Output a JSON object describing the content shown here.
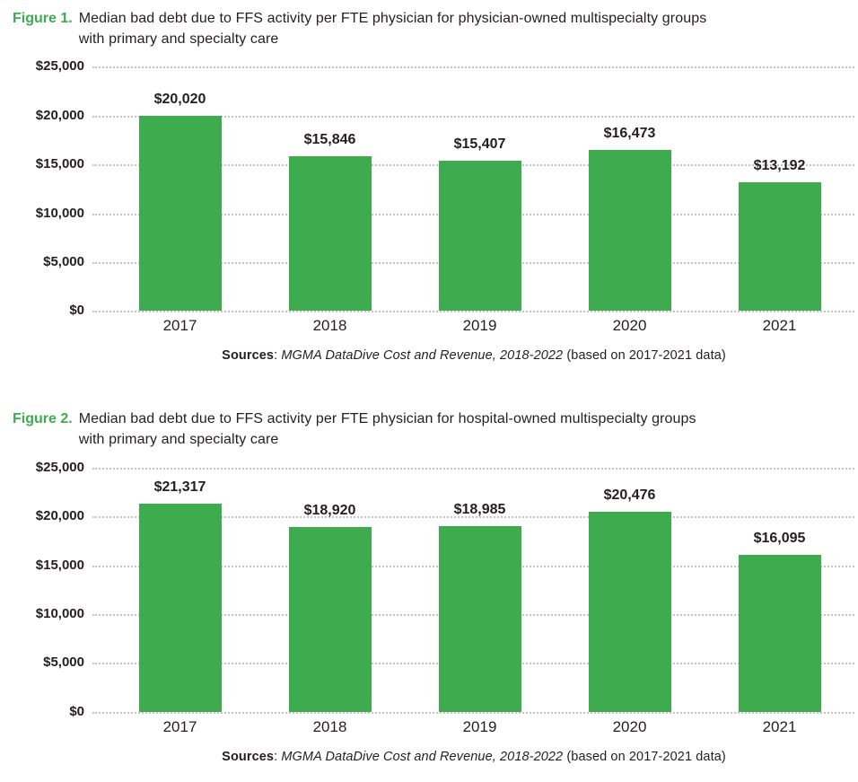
{
  "colors": {
    "bar_green": "#3eac4e",
    "figure_label_green": "#3eac4e",
    "text_dark": "#231f20",
    "gridline_gray": "#c3c3c3"
  },
  "chart_data": [
    {
      "type": "bar",
      "title": "Figure 1. Median bad debt due to FFS activity per FTE physician for physician-owned multispecialty groups with primary and specialty care",
      "categories": [
        "2017",
        "2018",
        "2019",
        "2020",
        "2021"
      ],
      "values": [
        20020,
        15846,
        15407,
        16473,
        13192
      ],
      "value_labels": [
        "$20,020",
        "$15,846",
        "$15,407",
        "$16,473",
        "$13,192"
      ],
      "xlabel": "",
      "ylabel": "",
      "ylim": [
        0,
        25000
      ],
      "ytick_values": [
        0,
        5000,
        10000,
        15000,
        20000,
        25000
      ],
      "ytick_labels": [
        "$0",
        "$5,000",
        "$10,000",
        "$15,000",
        "$20,000",
        "$25,000"
      ],
      "grid": "horizontal-dotted",
      "legend": "none",
      "bar_color": "#3eac4e"
    },
    {
      "type": "bar",
      "title": "Figure 2. Median bad debt due to FFS activity per FTE physician for hospital-owned multispecialty groups with primary and specialty care",
      "categories": [
        "2017",
        "2018",
        "2019",
        "2020",
        "2021"
      ],
      "values": [
        21317,
        18920,
        18985,
        20476,
        16095
      ],
      "value_labels": [
        "$21,317",
        "$18,920",
        "$18,985",
        "$20,476",
        "$16,095"
      ],
      "xlabel": "",
      "ylabel": "",
      "ylim": [
        0,
        25000
      ],
      "ytick_values": [
        0,
        5000,
        10000,
        15000,
        20000,
        25000
      ],
      "ytick_labels": [
        "$0",
        "$5,000",
        "$10,000",
        "$15,000",
        "$20,000",
        "$25,000"
      ],
      "grid": "horizontal-dotted",
      "legend": "none",
      "bar_color": "#3eac4e"
    }
  ],
  "figures": [
    {
      "figure_label": "Figure 1.",
      "title": "Median bad debt due to FFS activity per FTE physician for physician-owned multispecialty groups\nwith primary and specialty care",
      "sources_label": "Sources",
      "sources_sep": ": ",
      "sources_citation": "MGMA DataDive Cost and Revenue, 2018-2022",
      "sources_note": " (based on 2017-2021 data)"
    },
    {
      "figure_label": "Figure 2.",
      "title": "Median bad debt due to FFS activity per FTE physician for hospital-owned multispecialty groups\nwith primary and specialty care",
      "sources_label": "Sources",
      "sources_sep": ": ",
      "sources_citation": "MGMA DataDive Cost and Revenue, 2018-2022",
      "sources_note": " (based on 2017-2021 data)"
    }
  ]
}
